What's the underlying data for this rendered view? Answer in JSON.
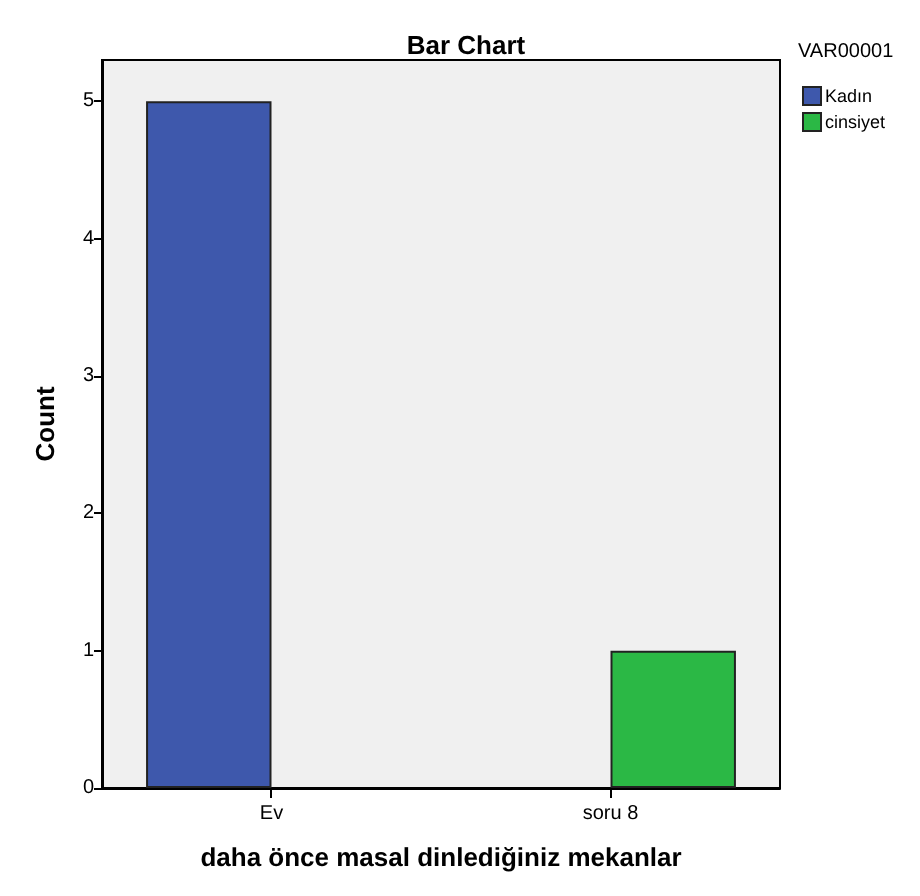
{
  "chart_data": {
    "type": "bar",
    "title": "Bar Chart",
    "xlabel": "daha önce masal dinlediğiniz mekanlar",
    "ylabel": "Count",
    "legend_title": "VAR00001",
    "categories": [
      "Ev",
      "soru 8"
    ],
    "series": [
      {
        "name": "Kadın",
        "color": "#3e58ac",
        "values": [
          5,
          null
        ]
      },
      {
        "name": "cinsiyet",
        "color": "#2bb845",
        "values": [
          null,
          1
        ]
      }
    ],
    "ylim": [
      0,
      5.3
    ],
    "yticks": [
      0,
      1,
      2,
      3,
      4,
      5
    ],
    "grid": false,
    "legend": "right"
  }
}
